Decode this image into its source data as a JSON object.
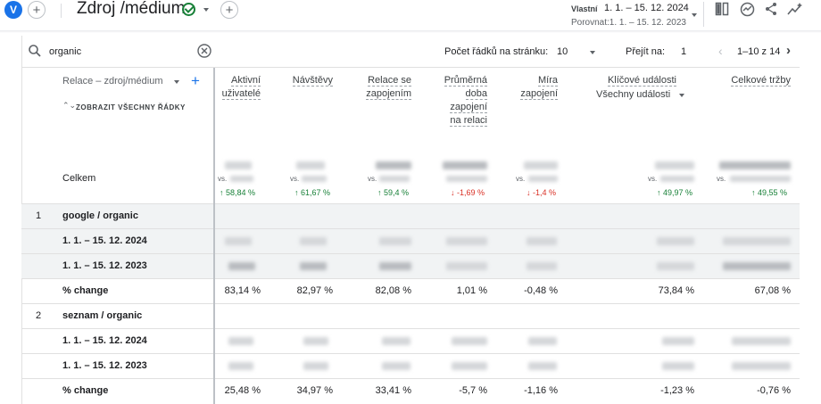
{
  "header": {
    "avatar_letter": "V",
    "title": "Zdroj /médium",
    "date_chip": "Vlastní",
    "date_range": "1. 1. – 15. 12. 2024",
    "compare_label": "Porovnat:1. 1. – 15. 12. 2023"
  },
  "toolbar": {
    "search_value": "organic",
    "rows_per_page_label": "Počet řádků na stránku:",
    "rows_per_page_value": "10",
    "goto_label": "Přejít na:",
    "goto_value": "1",
    "pagination_text": "1–10 z 14"
  },
  "table": {
    "dimension_label": "Relace – zdroj/médium",
    "show_all_rows": "ZOBRAZIT VŠECHNY ŘÁDKY",
    "key_events_filter": "Všechny události",
    "columns": [
      {
        "lines": [
          "Aktivní",
          "uživatelé"
        ]
      },
      {
        "lines": [
          "Návštěvy"
        ]
      },
      {
        "lines": [
          "Relace se",
          "zapojením"
        ]
      },
      {
        "lines": [
          "Průměrná",
          "doba",
          "zapojení",
          "na relaci"
        ]
      },
      {
        "lines": [
          "Míra",
          "zapojení"
        ]
      },
      {
        "lines": [
          "Klíčové události"
        ]
      },
      {
        "lines": [
          "Celkové tržby"
        ]
      }
    ],
    "totals": {
      "label": "Celkem",
      "vs": "vs.",
      "changes": [
        "58,84 %",
        "61,67 %",
        "59,4 %",
        "-1,69 %",
        "-1,4 %",
        "49,97 %",
        "49,55 %"
      ],
      "directions": [
        "up",
        "up",
        "up",
        "down",
        "down",
        "up",
        "up"
      ]
    },
    "groups": [
      {
        "index": "1",
        "name": "google / organic",
        "period_current": "1. 1. – 15. 12. 2024",
        "period_previous": "1. 1. – 15. 12. 2023",
        "change_label": "% change",
        "changes": [
          "83,14 %",
          "82,97 %",
          "82,08 %",
          "1,01 %",
          "-0,48 %",
          "73,84 %",
          "67,08 %"
        ]
      },
      {
        "index": "2",
        "name": "seznam / organic",
        "period_current": "1. 1. – 15. 12. 2024",
        "period_previous": "1. 1. – 15. 12. 2023",
        "change_label": "% change",
        "changes": [
          "25,48 %",
          "34,97 %",
          "33,41 %",
          "-5,7 %",
          "-1,16 %",
          "-1,23 %",
          "-0,76 %"
        ]
      }
    ]
  },
  "colors": {
    "accent": "#1a73e8",
    "up": "#188038",
    "down": "#d93025",
    "shaded_row": "#f1f3f4"
  }
}
